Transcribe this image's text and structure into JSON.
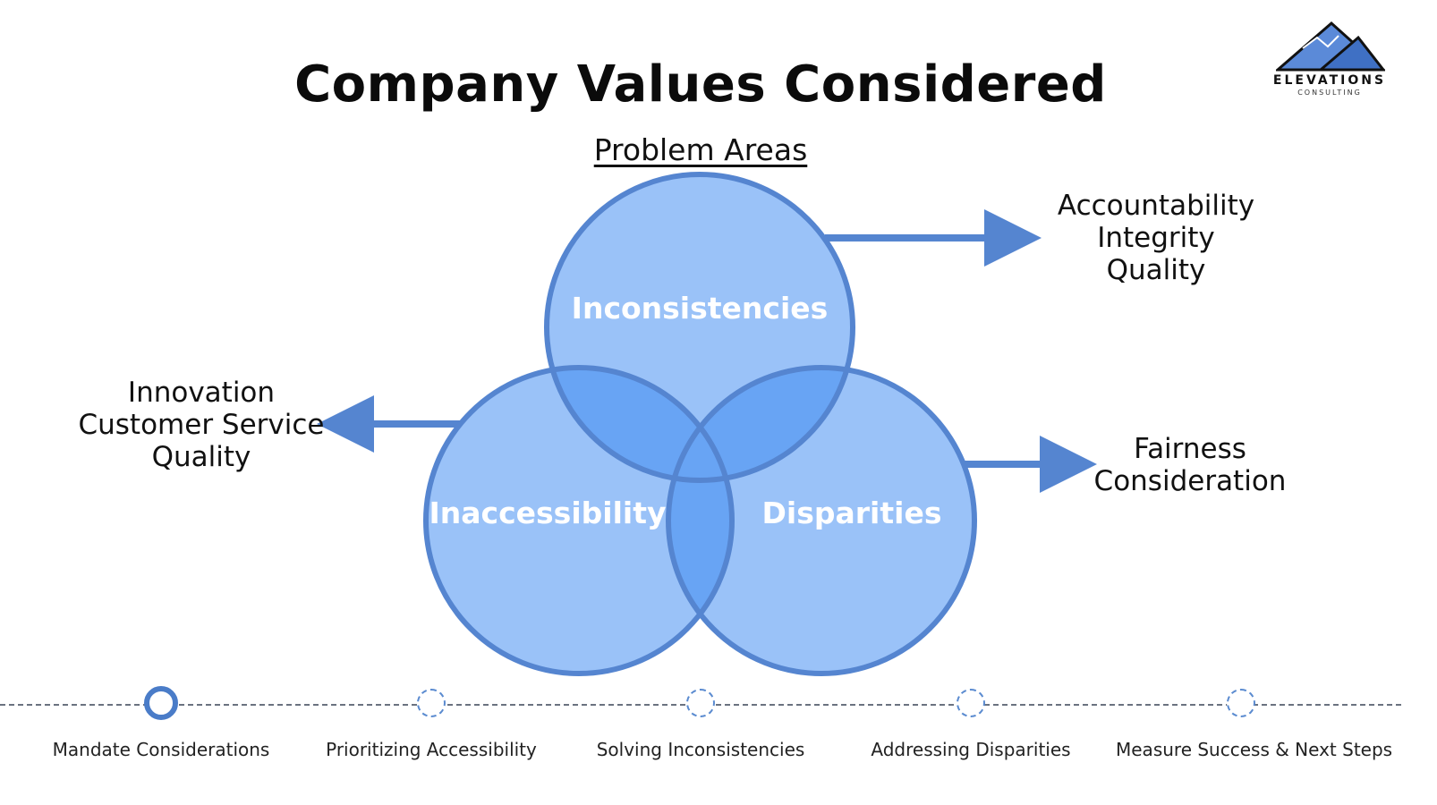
{
  "title": "Company Values Considered",
  "subtitle": "Problem Areas",
  "logo": {
    "name": "ELEVATIONS",
    "sub": "CONSULTING"
  },
  "venn": {
    "top": {
      "label": "Inconsistencies",
      "values": [
        "Accountability",
        "Integrity",
        "Quality"
      ]
    },
    "left": {
      "label": "Inaccessibility",
      "values": [
        "Innovation",
        "Customer Service",
        "Quality"
      ]
    },
    "right": {
      "label": "Disparities",
      "values": [
        "Fairness",
        "Consideration"
      ]
    }
  },
  "colors": {
    "circle_fill": "#9ac2f8",
    "circle_stroke": "#5585d0",
    "overlap": "#68a4f4",
    "arrow": "#5585d0"
  },
  "timeline": {
    "steps": [
      {
        "label": "Mandate Considerations",
        "active": true
      },
      {
        "label": "Prioritizing Accessibility",
        "active": false
      },
      {
        "label": "Solving Inconsistencies",
        "active": false
      },
      {
        "label": "Addressing Disparities",
        "active": false
      },
      {
        "label": "Measure Success & Next Steps",
        "active": false
      }
    ]
  }
}
